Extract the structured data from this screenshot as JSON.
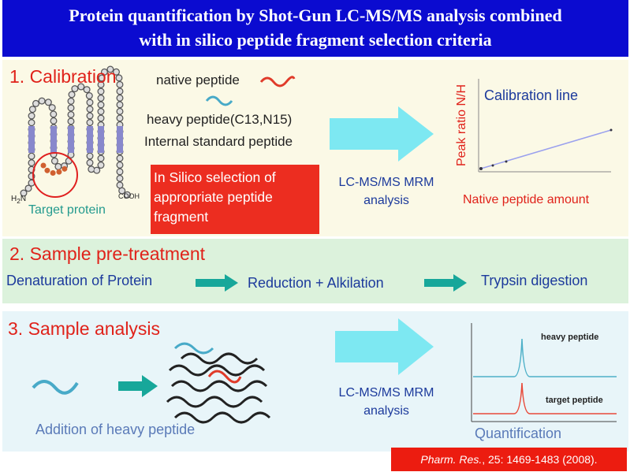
{
  "header": {
    "title_lines": [
      "Protein quantification by Shot-Gun LC-MS/MS analysis combined",
      "with in silico peptide fragment selection criteria"
    ]
  },
  "calibration": {
    "heading": "1. Calibration",
    "native_peptide": "native peptide",
    "heavy_peptide": "heavy peptide(C13,N15)",
    "internal_standard": "Internal standard peptide",
    "selection_lines": [
      "In Silico selection of",
      "appropriate peptide",
      "fragment"
    ],
    "analysis_lines": [
      "LC-MS/MS MRM",
      "analysis"
    ],
    "y_axis_label": "Peak ratio N/H",
    "chart_title": "Calibration line",
    "x_axis_label": "Native peptide amount",
    "protein_label": "Target protein",
    "n_terminus": "H",
    "n_terminus_sub": "2",
    "n_terminus_end": "N",
    "c_terminus": "COOH"
  },
  "pretreatment": {
    "heading": "2. Sample pre-treatment",
    "steps": [
      "Denaturation of Protein",
      "Reduction + Alkilation",
      "Trypsin digestion"
    ]
  },
  "analysis": {
    "heading": "3. Sample analysis",
    "addition": "Addition of heavy peptide",
    "analysis_lines": [
      "LC-MS/MS MRM",
      "analysis"
    ],
    "heavy_trace": "heavy peptide",
    "target_trace": "target peptide",
    "result": "Quantification"
  },
  "citation": {
    "journal": "Pharm. Res.",
    "details": ", 25: 1469-1483 (2008)."
  }
}
